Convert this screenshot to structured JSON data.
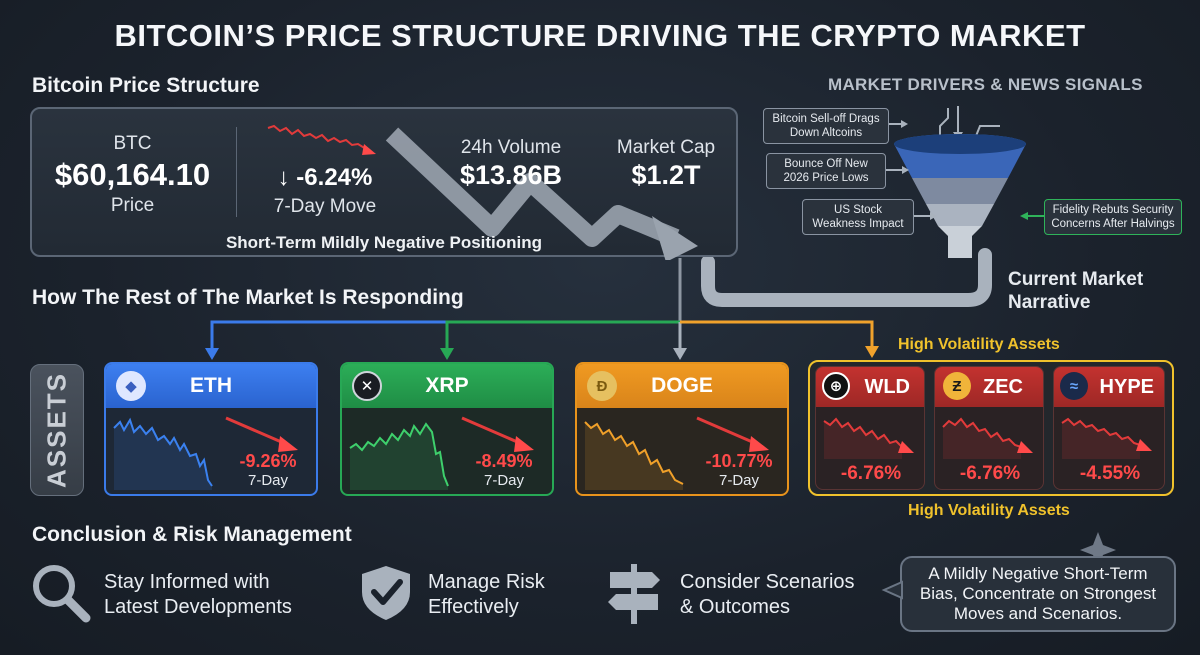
{
  "title": "BITCOIN’S PRICE STRUCTURE DRIVING THE CRYPTO MARKET",
  "price_structure": {
    "heading": "Bitcoin Price Structure",
    "btc_label": "BTC",
    "btc_price": "$60,164.10",
    "btc_price_label": "Price",
    "move_value": "↓ -6.24%",
    "move_label": "7-Day Move",
    "volume_label": "24h Volume",
    "volume_value": "$13.86B",
    "mcap_label": "Market Cap",
    "mcap_value": "$1.2T",
    "positioning": "Short-Term Mildly Negative Positioning"
  },
  "drivers": {
    "heading": "MARKET DRIVERS & NEWS SIGNALS",
    "news": [
      "Bitcoin Sell-off Drags Down Altcoins",
      "Bounce Off New 2026 Price Lows",
      "US Stock Weakness Impact",
      "Fidelity Rebuts Security Concerns After Halvings"
    ],
    "narrative": "Current Market Narrative"
  },
  "market_response": {
    "heading": "How The Rest of The Market Is Responding",
    "assets_label": "ASSETS",
    "high_vol_top": "High Volatility Assets",
    "high_vol_bottom": "High Volatility Assets",
    "cards": [
      {
        "name": "ETH",
        "change": "-9.26%",
        "period": "7-Day",
        "color": "#2f6fe0"
      },
      {
        "name": "XRP",
        "change": "-8.49%",
        "period": "7-Day",
        "color": "#1f9a4a"
      },
      {
        "name": "DOGE",
        "change": "-10.77%",
        "period": "7-Day",
        "color": "#e8931c"
      }
    ],
    "hv_cards": [
      {
        "name": "WLD",
        "change": "-6.76%"
      },
      {
        "name": "ZEC",
        "change": "-6.76%"
      },
      {
        "name": "HYPE",
        "change": "-4.55%"
      }
    ]
  },
  "conclusion": {
    "heading": "Conclusion & Risk Management",
    "items": [
      {
        "line1": "Stay Informed with",
        "line2": "Latest Developments",
        "icon": "magnifier-icon"
      },
      {
        "line1": "Manage Risk",
        "line2": "Effectively",
        "icon": "shield-check-icon"
      },
      {
        "line1": "Consider Scenarios",
        "line2": "& Outcomes",
        "icon": "signpost-icon"
      }
    ],
    "summary": "A Mildly Negative Short-Term Bias, Concentrate on Strongest Moves and Scenarios."
  },
  "colors": {
    "negative": "#ff4a4a",
    "eth": "#2f6fe0",
    "xrp": "#1f9a4a",
    "doge": "#e8931c",
    "high_vol": "#f0c22c",
    "hv_card": "#b3302e"
  }
}
